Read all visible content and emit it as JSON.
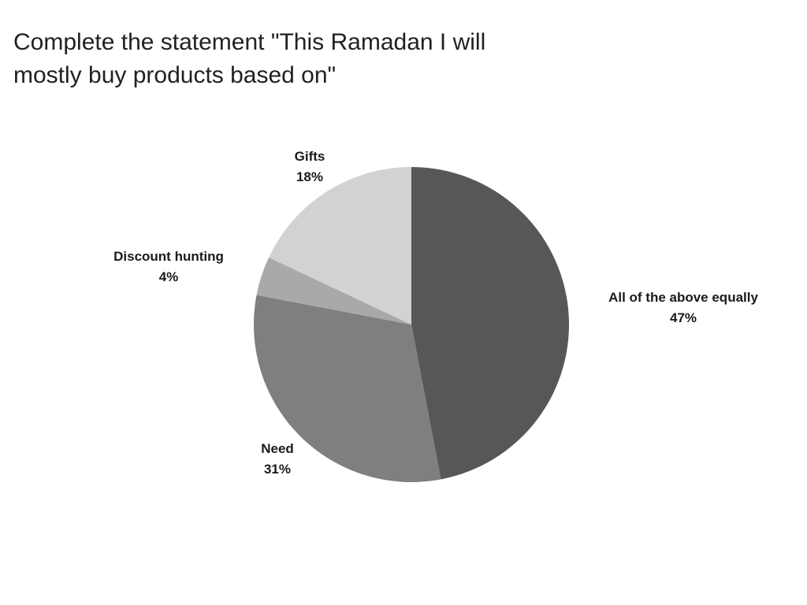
{
  "chart_data": {
    "type": "pie",
    "title": "Complete the statement \"This Ramadan I will mostly buy products based on\"",
    "title_lines": [
      "Complete the statement \"This Ramadan I will",
      "mostly buy products based on\""
    ],
    "start_angle": "top",
    "direction": "clockwise",
    "legend_position": "none",
    "background_color": "#ffffff",
    "title_color": "#212121",
    "label_color": "#1a1a1a",
    "slices": [
      {
        "label": "All of the above equally",
        "value": 47,
        "pct_label": "47%",
        "color": "#575757"
      },
      {
        "label": "Need",
        "value": 31,
        "pct_label": "31%",
        "color": "#7f7f7f"
      },
      {
        "label": "Discount hunting",
        "value": 4,
        "pct_label": "4%",
        "color": "#a9a9a9"
      },
      {
        "label": "Gifts",
        "value": 18,
        "pct_label": "18%",
        "color": "#d2d2d2"
      }
    ]
  }
}
